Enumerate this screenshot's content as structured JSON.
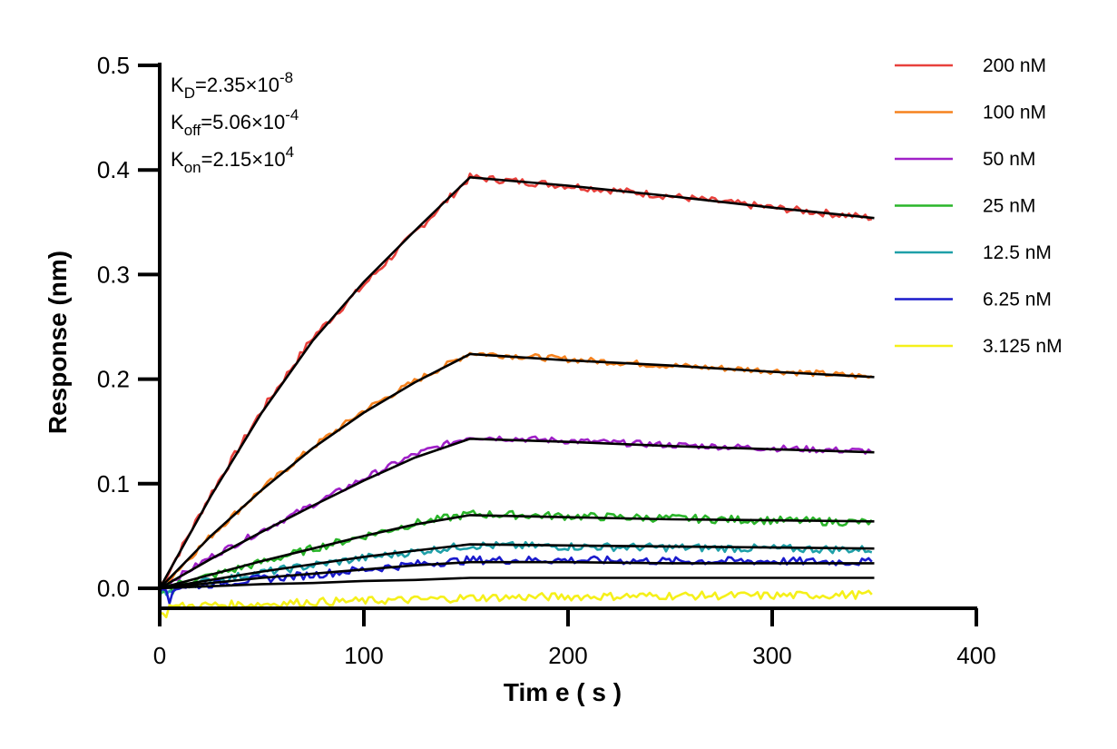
{
  "chart_data": {
    "type": "line",
    "xlabel": "Tim e ( s )",
    "ylabel": "Response (nm)",
    "xlim": [
      0,
      400
    ],
    "ylim": [
      -0.02,
      0.5
    ],
    "x_ticks": [
      0,
      100,
      200,
      300,
      400
    ],
    "x_tick_labels": [
      "0",
      "100",
      "200",
      "300",
      "400"
    ],
    "y_ticks": [
      0,
      0.1,
      0.2,
      0.3,
      0.4,
      0.5
    ],
    "y_tick_labels": [
      "0.0",
      "0.1",
      "0.2",
      "0.3",
      "0.4",
      "0.5"
    ],
    "grid": false,
    "legend_position": "right",
    "fit_line_color": "#000000",
    "annotations": [
      {
        "base": "K",
        "sub": "D",
        "mid": "=2.35×10",
        "sup": "-8"
      },
      {
        "base": "K",
        "sub": "off",
        "mid": "=5.06×10",
        "sup": "-4"
      },
      {
        "base": "K",
        "sub": "on",
        "mid": "=2.15×10",
        "sup": "4"
      }
    ],
    "phases": {
      "association_end_s": 152,
      "dissociation_end_s": 350
    },
    "series": [
      {
        "name": "200 nM",
        "color": "#e8413c",
        "x": [
          0,
          25,
          50,
          75,
          100,
          125,
          152,
          200,
          250,
          300,
          350
        ],
        "y": [
          0,
          0.09,
          0.17,
          0.24,
          0.29,
          0.34,
          0.393,
          0.385,
          0.375,
          0.364,
          0.354
        ]
      },
      {
        "name": "100 nM",
        "color": "#f5821f",
        "x": [
          0,
          25,
          50,
          75,
          100,
          125,
          152,
          200,
          250,
          300,
          350
        ],
        "y": [
          0,
          0.05,
          0.095,
          0.135,
          0.17,
          0.198,
          0.225,
          0.219,
          0.213,
          0.208,
          0.202
        ]
      },
      {
        "name": "50 nM",
        "color": "#a020c8",
        "x": [
          0,
          25,
          50,
          75,
          100,
          125,
          152,
          200,
          250,
          300,
          350
        ],
        "y": [
          0,
          0.03,
          0.055,
          0.08,
          0.105,
          0.128,
          0.145,
          0.141,
          0.137,
          0.134,
          0.131
        ]
      },
      {
        "name": "25 nM",
        "color": "#2ab52a",
        "x": [
          0,
          25,
          50,
          75,
          100,
          125,
          152,
          200,
          250,
          300,
          350
        ],
        "y": [
          0,
          0.012,
          0.025,
          0.038,
          0.05,
          0.062,
          0.071,
          0.069,
          0.067,
          0.065,
          0.063
        ]
      },
      {
        "name": "12.5 nM",
        "color": "#1fa0a8",
        "x": [
          0,
          25,
          50,
          75,
          100,
          125,
          152,
          200,
          250,
          300,
          350
        ],
        "y": [
          0,
          0.007,
          0.015,
          0.022,
          0.029,
          0.035,
          0.041,
          0.04,
          0.039,
          0.038,
          0.037
        ]
      },
      {
        "name": "6.25 nM",
        "color": "#1a1acc",
        "x": [
          0,
          25,
          50,
          75,
          100,
          125,
          152,
          200,
          250,
          300,
          350
        ],
        "y": [
          0,
          0.004,
          0.009,
          0.013,
          0.018,
          0.023,
          0.027,
          0.027,
          0.026,
          0.026,
          0.025
        ]
      },
      {
        "name": "3.125 nM",
        "color": "#f5f01a",
        "x": [
          0,
          25,
          50,
          75,
          100,
          125,
          152,
          200,
          250,
          300,
          350
        ],
        "y": [
          -0.018,
          -0.016,
          -0.015,
          -0.013,
          -0.012,
          -0.011,
          -0.009,
          -0.008,
          -0.007,
          -0.007,
          -0.006
        ]
      }
    ],
    "fits": [
      {
        "x": [
          0,
          25,
          50,
          75,
          100,
          125,
          152,
          200,
          250,
          300,
          350
        ],
        "y": [
          0,
          0.088,
          0.168,
          0.237,
          0.293,
          0.342,
          0.393,
          0.385,
          0.375,
          0.364,
          0.354
        ]
      },
      {
        "x": [
          0,
          25,
          50,
          75,
          100,
          125,
          152,
          200,
          250,
          300,
          350
        ],
        "y": [
          0,
          0.05,
          0.094,
          0.134,
          0.168,
          0.197,
          0.224,
          0.218,
          0.213,
          0.207,
          0.202
        ]
      },
      {
        "x": [
          0,
          25,
          50,
          75,
          100,
          125,
          152,
          200,
          250,
          300,
          350
        ],
        "y": [
          0,
          0.028,
          0.054,
          0.079,
          0.103,
          0.125,
          0.143,
          0.14,
          0.136,
          0.133,
          0.13
        ]
      },
      {
        "x": [
          0,
          25,
          50,
          75,
          100,
          125,
          152,
          200,
          250,
          300,
          350
        ],
        "y": [
          0,
          0.013,
          0.026,
          0.038,
          0.05,
          0.061,
          0.07,
          0.068,
          0.066,
          0.065,
          0.064
        ]
      },
      {
        "x": [
          0,
          25,
          50,
          75,
          100,
          125,
          152,
          200,
          250,
          300,
          350
        ],
        "y": [
          0,
          0.008,
          0.016,
          0.023,
          0.03,
          0.036,
          0.042,
          0.041,
          0.04,
          0.039,
          0.038
        ]
      },
      {
        "x": [
          0,
          25,
          50,
          75,
          100,
          125,
          152,
          200,
          250,
          300,
          350
        ],
        "y": [
          0,
          0.005,
          0.01,
          0.014,
          0.018,
          0.022,
          0.025,
          0.025,
          0.024,
          0.024,
          0.024
        ]
      },
      {
        "x": [
          0,
          25,
          50,
          75,
          100,
          125,
          152,
          200,
          250,
          300,
          350
        ],
        "y": [
          0,
          0.002,
          0.004,
          0.005,
          0.007,
          0.008,
          0.01,
          0.01,
          0.01,
          0.01,
          0.01
        ]
      }
    ]
  }
}
